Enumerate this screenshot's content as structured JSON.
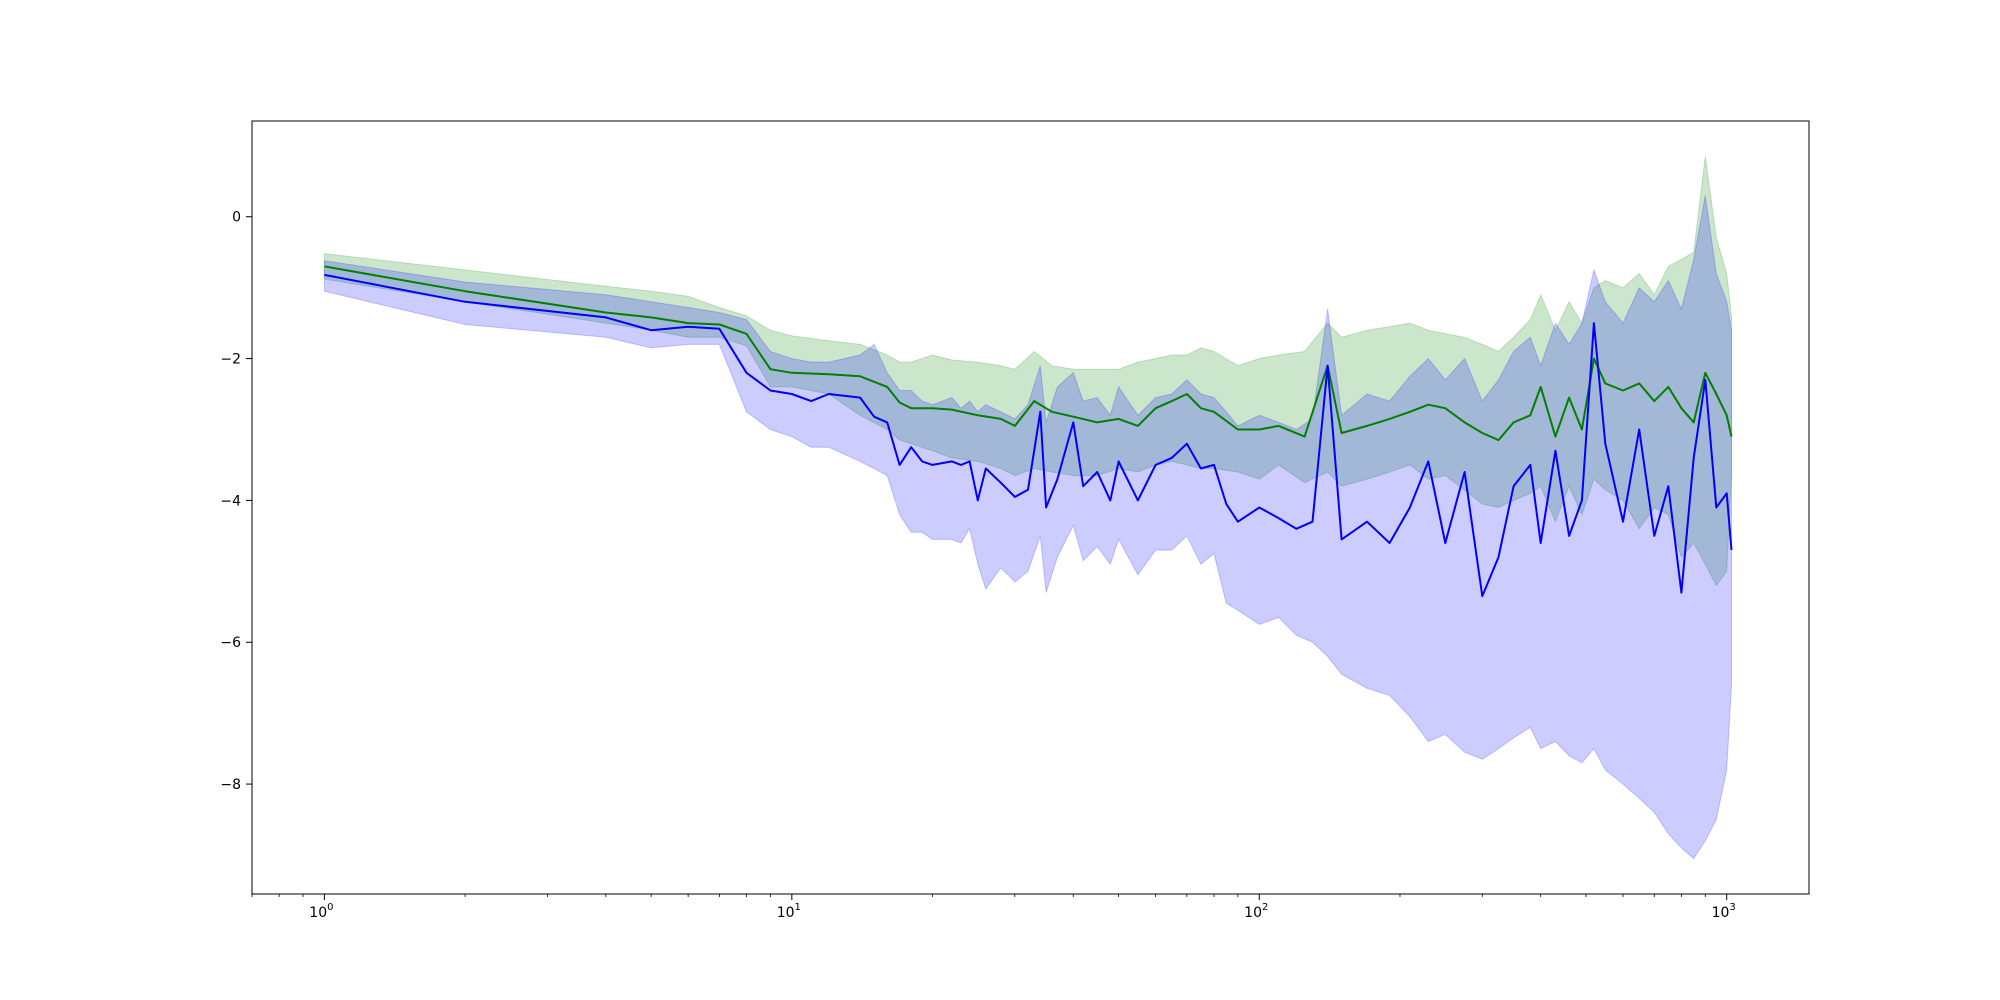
{
  "chart_data": {
    "type": "line",
    "title": "",
    "xlabel": "",
    "ylabel": "",
    "xscale": "log",
    "xlim": [
      0.7,
      1500
    ],
    "ylim": [
      -9.55,
      1.35
    ],
    "grid": false,
    "legend": "none",
    "x_ticks": [
      {
        "value": 1,
        "base": "10",
        "exp": "0"
      },
      {
        "value": 10,
        "base": "10",
        "exp": "1"
      },
      {
        "value": 100,
        "base": "10",
        "exp": "2"
      },
      {
        "value": 1000,
        "base": "10",
        "exp": "3"
      }
    ],
    "y_ticks": [
      {
        "value": 0,
        "label": "0"
      },
      {
        "value": -2,
        "label": "−2"
      },
      {
        "value": -4,
        "label": "−4"
      },
      {
        "value": -6,
        "label": "−6"
      },
      {
        "value": -8,
        "label": "−8"
      }
    ],
    "series": [
      {
        "color": "#008000",
        "band_color": "#008000",
        "x": [
          1,
          2,
          4,
          5,
          6,
          7,
          8,
          9,
          10,
          12,
          14,
          16,
          17,
          18,
          20,
          22,
          25,
          28,
          30,
          33,
          36,
          40,
          45,
          50,
          55,
          60,
          65,
          70,
          75,
          80,
          90,
          100,
          110,
          125,
          140,
          150,
          170,
          190,
          210,
          230,
          250,
          275,
          300,
          325,
          350,
          380,
          400,
          430,
          460,
          490,
          520,
          550,
          600,
          650,
          700,
          750,
          800,
          850,
          900,
          950,
          1000,
          1024
        ],
        "y": [
          -0.7,
          -1.05,
          -1.35,
          -1.42,
          -1.5,
          -1.52,
          -1.65,
          -2.15,
          -2.2,
          -2.22,
          -2.25,
          -2.4,
          -2.62,
          -2.7,
          -2.7,
          -2.72,
          -2.8,
          -2.85,
          -2.95,
          -2.6,
          -2.75,
          -2.82,
          -2.9,
          -2.85,
          -2.95,
          -2.7,
          -2.6,
          -2.5,
          -2.7,
          -2.75,
          -3.0,
          -3.0,
          -2.95,
          -3.1,
          -2.1,
          -3.05,
          -2.95,
          -2.85,
          -2.75,
          -2.65,
          -2.7,
          -2.9,
          -3.05,
          -3.15,
          -2.9,
          -2.8,
          -2.4,
          -3.1,
          -2.55,
          -3.0,
          -2.0,
          -2.35,
          -2.45,
          -2.35,
          -2.6,
          -2.4,
          -2.7,
          -2.9,
          -2.2,
          -2.5,
          -2.8,
          -3.1
        ],
        "lower": [
          -0.88,
          -1.2,
          -1.5,
          -1.6,
          -1.7,
          -1.7,
          -1.82,
          -2.4,
          -2.4,
          -2.5,
          -2.8,
          -3.0,
          -3.15,
          -3.2,
          -3.3,
          -3.4,
          -3.45,
          -3.55,
          -3.65,
          -3.55,
          -3.6,
          -3.65,
          -3.65,
          -3.55,
          -3.6,
          -3.5,
          -3.45,
          -3.5,
          -3.55,
          -3.55,
          -3.6,
          -3.7,
          -3.5,
          -3.75,
          -3.6,
          -3.8,
          -3.7,
          -3.6,
          -3.5,
          -3.7,
          -3.65,
          -3.85,
          -4.05,
          -4.1,
          -4.0,
          -3.9,
          -3.8,
          -4.3,
          -3.8,
          -4.2,
          -3.7,
          -3.85,
          -4.0,
          -4.4,
          -4.1,
          -4.2,
          -4.8,
          -4.6,
          -4.9,
          -5.2,
          -5.0,
          -3.6
        ],
        "upper": [
          -0.52,
          -0.75,
          -0.98,
          -1.05,
          -1.12,
          -1.28,
          -1.4,
          -1.6,
          -1.68,
          -1.75,
          -1.8,
          -1.95,
          -2.05,
          -2.05,
          -1.95,
          -2.02,
          -2.05,
          -2.1,
          -2.15,
          -1.9,
          -2.1,
          -2.15,
          -2.15,
          -2.15,
          -2.05,
          -2.0,
          -1.95,
          -1.95,
          -1.85,
          -1.9,
          -2.1,
          -2.0,
          -1.95,
          -1.9,
          -1.5,
          -1.7,
          -1.6,
          -1.55,
          -1.5,
          -1.6,
          -1.65,
          -1.7,
          -1.8,
          -1.9,
          -1.7,
          -1.45,
          -1.1,
          -1.6,
          -1.2,
          -1.5,
          -1.0,
          -0.9,
          -1.0,
          -0.8,
          -1.1,
          -0.7,
          -0.6,
          -0.5,
          0.85,
          -0.3,
          -0.8,
          -1.4
        ]
      },
      {
        "color": "#0000ff",
        "band_color": "#0000ff",
        "x": [
          1,
          2,
          4,
          5,
          6,
          7,
          8,
          9,
          10,
          11,
          12,
          14,
          15,
          16,
          17,
          18,
          19,
          20,
          22,
          23,
          24,
          25,
          26,
          28,
          30,
          32,
          34,
          35,
          37,
          40,
          42,
          45,
          48,
          50,
          55,
          60,
          65,
          70,
          75,
          80,
          85,
          90,
          100,
          110,
          120,
          130,
          140,
          150,
          170,
          190,
          210,
          230,
          250,
          275,
          300,
          325,
          350,
          380,
          400,
          430,
          460,
          490,
          520,
          550,
          600,
          650,
          700,
          750,
          800,
          850,
          900,
          950,
          1000,
          1024
        ],
        "y": [
          -0.82,
          -1.2,
          -1.42,
          -1.6,
          -1.55,
          -1.58,
          -2.2,
          -2.45,
          -2.5,
          -2.6,
          -2.5,
          -2.55,
          -2.82,
          -2.9,
          -3.5,
          -3.25,
          -3.45,
          -3.5,
          -3.45,
          -3.5,
          -3.45,
          -4.0,
          -3.55,
          -3.75,
          -3.95,
          -3.85,
          -2.75,
          -4.1,
          -3.7,
          -2.9,
          -3.8,
          -3.6,
          -4.0,
          -3.45,
          -4.0,
          -3.5,
          -3.4,
          -3.2,
          -3.55,
          -3.5,
          -4.05,
          -4.3,
          -4.1,
          -4.25,
          -4.4,
          -4.3,
          -2.1,
          -4.55,
          -4.3,
          -4.6,
          -4.1,
          -3.45,
          -4.6,
          -3.6,
          -5.35,
          -4.8,
          -3.8,
          -3.5,
          -4.6,
          -3.3,
          -4.5,
          -4.0,
          -1.5,
          -3.2,
          -4.3,
          -3.0,
          -4.5,
          -3.8,
          -5.3,
          -3.4,
          -2.3,
          -4.1,
          -3.9,
          -4.7
        ],
        "lower": [
          -1.05,
          -1.52,
          -1.7,
          -1.85,
          -1.8,
          -1.8,
          -2.75,
          -3.0,
          -3.1,
          -3.25,
          -3.25,
          -3.45,
          -3.55,
          -3.65,
          -4.2,
          -4.45,
          -4.45,
          -4.55,
          -4.55,
          -4.6,
          -4.4,
          -4.9,
          -5.25,
          -4.95,
          -5.15,
          -5.0,
          -4.5,
          -5.3,
          -4.8,
          -4.35,
          -4.85,
          -4.65,
          -4.9,
          -4.55,
          -5.05,
          -4.7,
          -4.7,
          -4.5,
          -4.9,
          -4.75,
          -5.45,
          -5.55,
          -5.75,
          -5.65,
          -5.9,
          -6.0,
          -6.2,
          -6.45,
          -6.65,
          -6.75,
          -7.05,
          -7.4,
          -7.3,
          -7.55,
          -7.65,
          -7.5,
          -7.35,
          -7.2,
          -7.5,
          -7.4,
          -7.6,
          -7.7,
          -7.5,
          -7.8,
          -8.0,
          -8.2,
          -8.4,
          -8.7,
          -8.9,
          -9.05,
          -8.8,
          -8.5,
          -7.8,
          -6.6
        ],
        "upper": [
          -0.62,
          -0.92,
          -1.1,
          -1.2,
          -1.28,
          -1.35,
          -1.45,
          -1.9,
          -2.0,
          -2.05,
          -2.05,
          -1.95,
          -1.8,
          -2.2,
          -2.45,
          -2.45,
          -2.6,
          -2.65,
          -2.55,
          -2.7,
          -2.6,
          -2.75,
          -2.65,
          -2.75,
          -2.85,
          -2.65,
          -2.1,
          -2.9,
          -2.4,
          -2.2,
          -2.6,
          -2.55,
          -2.8,
          -2.4,
          -2.8,
          -2.55,
          -2.5,
          -2.3,
          -2.5,
          -2.55,
          -2.75,
          -2.95,
          -2.8,
          -2.9,
          -3.0,
          -2.85,
          -1.3,
          -2.8,
          -2.5,
          -2.6,
          -2.25,
          -2.0,
          -2.3,
          -2.0,
          -2.6,
          -2.3,
          -1.9,
          -1.7,
          -2.1,
          -1.5,
          -1.8,
          -1.5,
          -0.75,
          -1.2,
          -1.5,
          -1.0,
          -1.2,
          -0.9,
          -1.3,
          -0.6,
          0.3,
          -0.8,
          -1.2,
          -1.6
        ]
      }
    ]
  }
}
